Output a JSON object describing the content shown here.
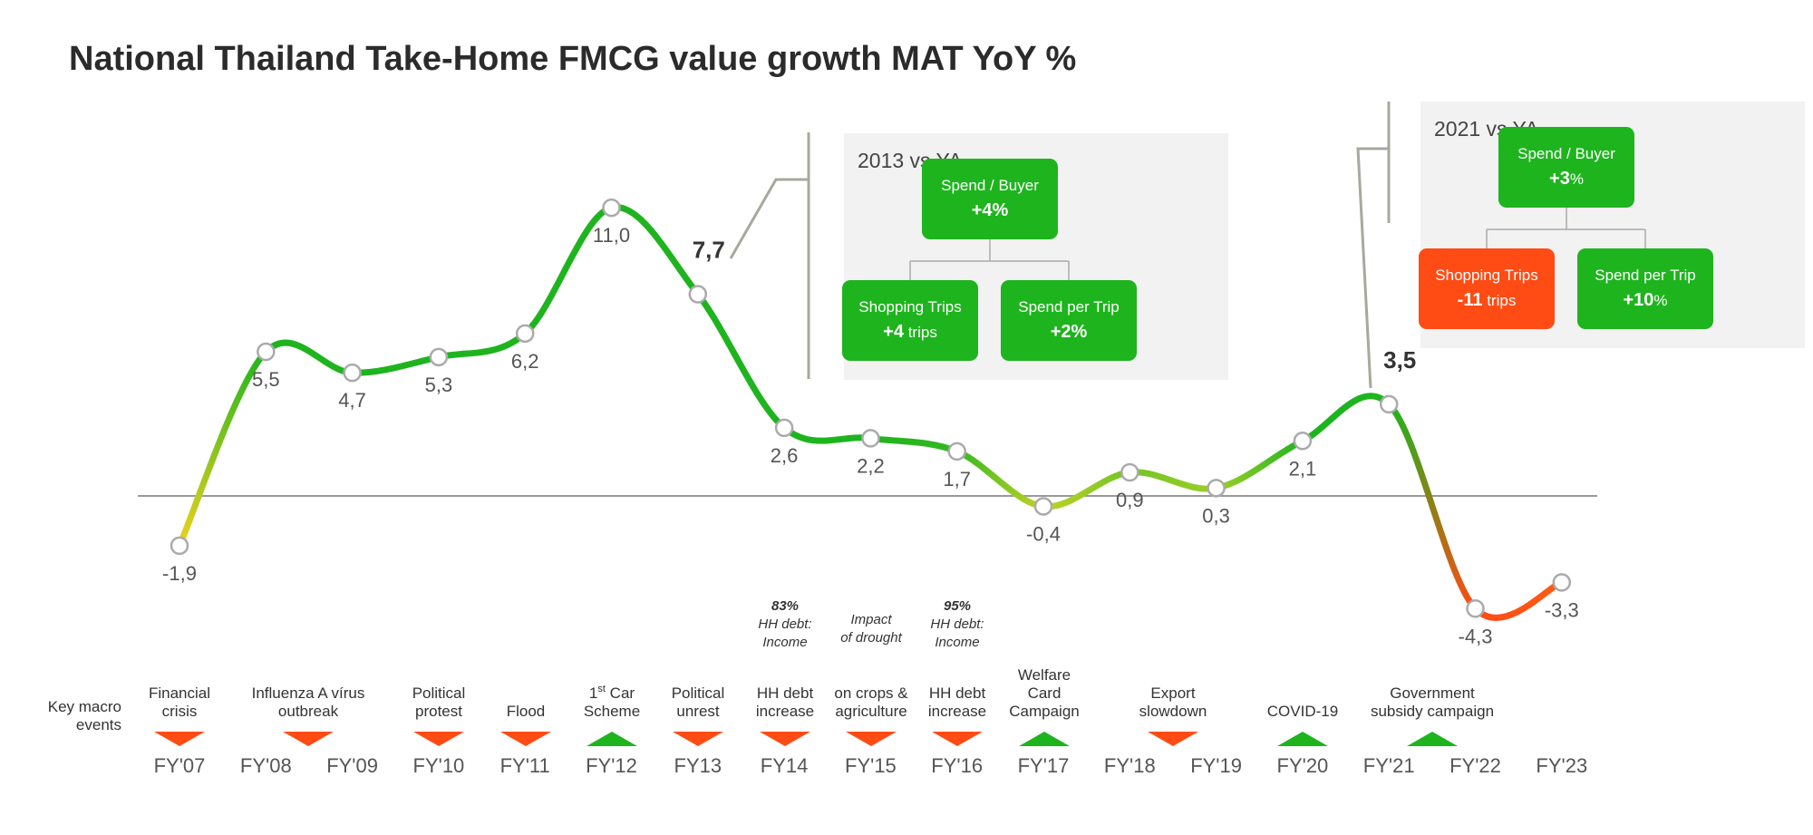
{
  "page_title": "National Thailand Take-Home FMCG value growth MAT YoY %",
  "chart_data": {
    "type": "line",
    "title": "National Thailand Take-Home FMCG value growth MAT YoY %",
    "categories": [
      "FY'07",
      "FY'08",
      "FY'09",
      "FY'10",
      "FY'11",
      "FY'12",
      "FY13",
      "FY14",
      "FY'15",
      "FY'16",
      "FY'17",
      "FY'18",
      "FY'19",
      "FY'20",
      "FY'21",
      "FY'22",
      "FY'23"
    ],
    "value_labels": [
      "-1,9",
      "5,5",
      "4,7",
      "5,3",
      "6,2",
      "11,0",
      "7,7",
      "2,6",
      "2,2",
      "1,7",
      "-0,4",
      "0,9",
      "0,3",
      "2,1",
      "3,5",
      "-4,3",
      "-3,3"
    ],
    "values": [
      -1.9,
      5.5,
      4.7,
      5.3,
      6.2,
      11.0,
      7.7,
      2.6,
      2.2,
      1.7,
      -0.4,
      0.9,
      0.3,
      2.1,
      3.5,
      -4.3,
      -3.3
    ],
    "highlighted": [
      "FY13",
      "FY'21"
    ],
    "baseline": 0,
    "ylim": [
      -5,
      11.5
    ],
    "grid": false,
    "colors": {
      "positive": "#1eb41e",
      "neutral": "#b4d228",
      "warning": "#f0d21e",
      "negative": "#ff4b14",
      "axis": "#999999"
    }
  },
  "macro_events": {
    "row_label": [
      "Key macro",
      "events"
    ],
    "items": [
      {
        "label": [
          "Financial",
          "crisis"
        ],
        "type": "negative"
      },
      {
        "label": [
          "Influenza A vírus",
          "outbreak"
        ],
        "type": "negative"
      },
      {
        "label": [
          "Political",
          "protest"
        ],
        "type": "negative"
      },
      {
        "label": [
          "Flood"
        ],
        "type": "negative"
      },
      {
        "label_sup": "1",
        "sup": "st",
        "label_rest": " Car",
        "label2": "Scheme",
        "type": "positive"
      },
      {
        "label": [
          "Political",
          "unrest"
        ],
        "type": "negative"
      },
      {
        "label": [
          "HH debt",
          "increase"
        ],
        "type": "negative"
      },
      {
        "label": [
          "on crops &",
          "agriculture"
        ],
        "type": "negative"
      },
      {
        "label": [
          "HH debt",
          "increase"
        ],
        "type": "negative"
      },
      {
        "label": [
          "Welfare",
          "Card",
          "Campaign"
        ],
        "type": "positive"
      },
      {
        "label": [
          "Export",
          "slowdown"
        ],
        "type": "negative"
      },
      {
        "label": [
          "COVID-19"
        ],
        "type": "positive"
      },
      {
        "label": [
          "Government",
          "subsidy campaign"
        ],
        "type": "positive"
      }
    ],
    "notes": [
      {
        "bold": "83%",
        "lines": [
          "HH debt:",
          "Income"
        ]
      },
      {
        "lines": [
          "Impact",
          "of drought"
        ]
      },
      {
        "bold": "95%",
        "lines": [
          "HH debt:",
          "Income"
        ]
      }
    ]
  },
  "panels": [
    {
      "title": "2013 vs YA",
      "top": {
        "name": "Spend / Buyer",
        "value": "+4%"
      },
      "left": {
        "name": "Shopping Trips",
        "value": "+4",
        "unit": " trips",
        "color": "#1eb41e"
      },
      "right": {
        "name": "Spend per Trip",
        "value": "+2%"
      }
    },
    {
      "title": "2021 vs YA",
      "top": {
        "name": "Spend / Buyer",
        "value": "+3",
        "unit": "%"
      },
      "left": {
        "name": "Shopping Trips",
        "value": "-11",
        "unit": " trips",
        "color": "#ff4b14"
      },
      "right": {
        "name": "Spend per Trip",
        "value": "+10",
        "unit": "%"
      }
    }
  ]
}
